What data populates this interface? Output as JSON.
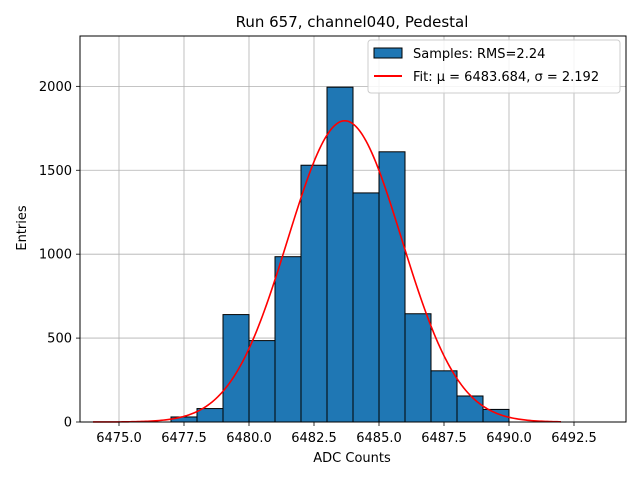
{
  "chart_data": {
    "type": "bar",
    "title": "Run 657, channel040, Pedestal",
    "xlabel": "ADC Counts",
    "ylabel": "Entries",
    "xlim": [
      6473.5,
      6494.5
    ],
    "ylim": [
      0,
      2300
    ],
    "xticks": [
      6475.0,
      6477.5,
      6480.0,
      6482.5,
      6485.0,
      6487.5,
      6490.0,
      6492.5
    ],
    "xtick_labels": [
      "6475.0",
      "6477.5",
      "6480.0",
      "6482.5",
      "6485.0",
      "6487.5",
      "6490.0",
      "6492.5"
    ],
    "yticks": [
      0,
      500,
      1000,
      1500,
      2000
    ],
    "ytick_labels": [
      "0",
      "500",
      "1000",
      "1500",
      "2000"
    ],
    "grid": true,
    "legend_position": "top-right",
    "histogram": {
      "name": "Samples: RMS=2.24",
      "color": "#1f77b4",
      "bins": [
        {
          "x0": 6477.0,
          "x1": 6478.0,
          "value": 30
        },
        {
          "x0": 6478.0,
          "x1": 6479.0,
          "value": 80
        },
        {
          "x0": 6479.0,
          "x1": 6480.0,
          "value": 640
        },
        {
          "x0": 6480.0,
          "x1": 6481.0,
          "value": 485
        },
        {
          "x0": 6481.0,
          "x1": 6482.0,
          "value": 985
        },
        {
          "x0": 6482.0,
          "x1": 6483.0,
          "value": 1530
        },
        {
          "x0": 6483.0,
          "x1": 6484.0,
          "value": 1995
        },
        {
          "x0": 6484.0,
          "x1": 6485.0,
          "value": 1365
        },
        {
          "x0": 6485.0,
          "x1": 6486.0,
          "value": 1610
        },
        {
          "x0": 6486.0,
          "x1": 6487.0,
          "value": 645
        },
        {
          "x0": 6487.0,
          "x1": 6488.0,
          "value": 305
        },
        {
          "x0": 6488.0,
          "x1": 6489.0,
          "value": 155
        },
        {
          "x0": 6489.0,
          "x1": 6490.0,
          "value": 75
        }
      ]
    },
    "fit": {
      "name": "Fit: μ = 6483.684, σ = 2.192",
      "color": "#ff0000",
      "mu": 6483.684,
      "sigma": 2.192,
      "amplitude": 1795,
      "x_range": [
        6474.0,
        6492.0
      ]
    }
  }
}
